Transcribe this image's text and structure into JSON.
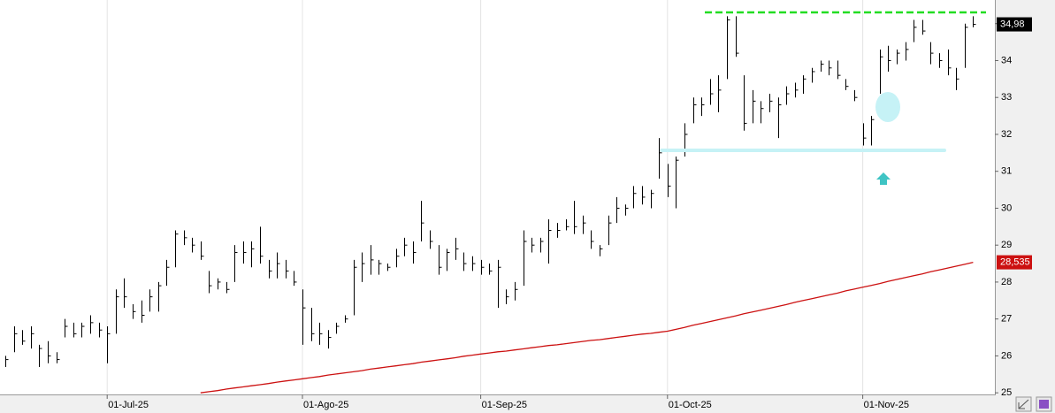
{
  "chart_data": {
    "type": "hlc",
    "categories": [
      null,
      null,
      null,
      null,
      null,
      null,
      null,
      null,
      null,
      null,
      null,
      null,
      "01-Jul-25",
      null,
      null,
      null,
      null,
      null,
      null,
      null,
      null,
      null,
      null,
      null,
      null,
      null,
      null,
      null,
      null,
      null,
      null,
      null,
      null,
      null,
      null,
      "01-Ago-25",
      null,
      null,
      null,
      null,
      null,
      null,
      null,
      null,
      null,
      null,
      null,
      null,
      null,
      null,
      null,
      null,
      null,
      null,
      null,
      null,
      "01-Sep-25",
      null,
      null,
      null,
      null,
      null,
      null,
      null,
      null,
      null,
      null,
      null,
      null,
      null,
      null,
      null,
      null,
      null,
      null,
      null,
      null,
      null,
      "01-Oct-25",
      null,
      null,
      null,
      null,
      null,
      null,
      null,
      null,
      null,
      null,
      null,
      null,
      null,
      null,
      null,
      null,
      null,
      null,
      null,
      null,
      null,
      null,
      "01-Nov-25",
      null,
      null,
      null,
      null,
      null,
      null,
      null,
      null,
      null,
      null,
      null,
      null,
      null
    ],
    "high": [
      26.0,
      26.8,
      26.7,
      26.8,
      26.3,
      26.4,
      26.1,
      27.0,
      26.9,
      26.9,
      27.1,
      26.9,
      26.8,
      27.8,
      28.1,
      27.4,
      27.5,
      27.8,
      28.0,
      28.6,
      29.4,
      29.4,
      29.2,
      29.1,
      28.3,
      28.1,
      28.0,
      29.0,
      29.1,
      29.1,
      29.5,
      28.6,
      28.8,
      28.6,
      28.3,
      27.8,
      27.3,
      26.9,
      26.7,
      26.9,
      27.1,
      28.6,
      28.8,
      29.0,
      28.6,
      28.5,
      28.9,
      29.2,
      29.1,
      30.2,
      29.4,
      29.0,
      28.9,
      29.2,
      28.8,
      28.7,
      28.6,
      28.5,
      28.6,
      27.8,
      28.0,
      29.4,
      29.2,
      29.2,
      29.7,
      29.6,
      29.7,
      30.2,
      29.8,
      29.4,
      29.0,
      29.8,
      30.3,
      30.1,
      30.6,
      30.6,
      30.5,
      31.9,
      31.2,
      31.4,
      32.3,
      33.0,
      33.0,
      33.5,
      33.6,
      35.2,
      35.2,
      33.6,
      33.2,
      32.9,
      33.1,
      33.0,
      33.3,
      33.4,
      33.6,
      33.8,
      34.0,
      34.0,
      34.0,
      33.5,
      33.2,
      32.3,
      32.5,
      34.3,
      34.4,
      34.3,
      34.5,
      35.1,
      35.1,
      34.5,
      34.2,
      34.3,
      33.8,
      35.0,
      35.2
    ],
    "low": [
      25.7,
      26.1,
      26.3,
      26.2,
      25.7,
      25.8,
      25.8,
      26.5,
      26.5,
      26.5,
      26.6,
      26.5,
      25.8,
      26.6,
      27.3,
      27.0,
      26.9,
      27.2,
      27.2,
      27.9,
      28.4,
      29.0,
      28.8,
      28.6,
      27.7,
      27.8,
      27.7,
      28.0,
      28.5,
      28.4,
      28.5,
      28.1,
      28.1,
      28.1,
      27.9,
      26.3,
      26.4,
      26.3,
      26.2,
      26.6,
      26.9,
      27.1,
      28.0,
      28.2,
      28.2,
      28.3,
      28.4,
      28.7,
      28.5,
      29.1,
      28.9,
      28.2,
      28.3,
      28.6,
      28.3,
      28.3,
      28.2,
      28.2,
      27.3,
      27.4,
      27.5,
      27.9,
      28.8,
      28.8,
      28.5,
      29.2,
      29.4,
      29.3,
      29.3,
      28.9,
      28.7,
      29.0,
      29.6,
      29.8,
      30.0,
      30.1,
      30.0,
      30.8,
      30.3,
      30.0,
      31.4,
      32.3,
      32.5,
      32.8,
      32.6,
      33.5,
      34.1,
      32.1,
      32.3,
      32.3,
      32.6,
      31.9,
      32.8,
      33.0,
      33.1,
      33.4,
      33.7,
      33.6,
      33.5,
      33.2,
      32.9,
      31.7,
      31.7,
      33.1,
      33.7,
      33.9,
      34.0,
      34.5,
      34.7,
      33.9,
      33.8,
      33.6,
      33.2,
      33.8,
      34.9
    ],
    "close": [
      25.9,
      26.6,
      26.4,
      26.6,
      26.2,
      26.0,
      25.9,
      26.8,
      26.6,
      26.8,
      26.9,
      26.7,
      26.6,
      27.6,
      27.6,
      27.2,
      27.1,
      27.6,
      27.9,
      28.4,
      29.3,
      29.2,
      29.0,
      28.7,
      27.9,
      28.0,
      27.8,
      28.8,
      28.8,
      28.9,
      28.7,
      28.3,
      28.5,
      28.3,
      28.0,
      27.3,
      26.6,
      26.6,
      26.5,
      26.8,
      27.0,
      28.4,
      28.5,
      28.6,
      28.5,
      28.4,
      28.7,
      29.0,
      28.8,
      29.6,
      29.1,
      28.4,
      28.8,
      28.9,
      28.5,
      28.5,
      28.4,
      28.3,
      28.4,
      27.6,
      27.8,
      29.1,
      29.0,
      29.1,
      29.4,
      29.4,
      29.5,
      29.5,
      29.6,
      29.1,
      28.9,
      29.6,
      30.0,
      30.0,
      30.4,
      30.3,
      30.4,
      31.5,
      30.6,
      31.3,
      32.0,
      32.8,
      32.8,
      33.1,
      33.2,
      35.1,
      34.2,
      32.3,
      32.9,
      32.7,
      32.9,
      32.8,
      33.1,
      33.2,
      33.5,
      33.7,
      33.9,
      33.8,
      33.6,
      33.3,
      33.0,
      31.9,
      32.4,
      34.1,
      34.0,
      34.2,
      34.3,
      34.9,
      34.8,
      34.2,
      34.0,
      33.8,
      33.5,
      34.9,
      34.98
    ],
    "close_last_label": "34,98",
    "bar_color": "#000000",
    "moving_average": {
      "color": "#cc1111",
      "last_label": "28,535",
      "values": [
        null,
        null,
        null,
        null,
        null,
        null,
        null,
        null,
        null,
        null,
        null,
        null,
        null,
        null,
        null,
        null,
        null,
        null,
        null,
        null,
        null,
        null,
        null,
        25.0,
        25.03,
        25.06,
        25.1,
        25.13,
        25.16,
        25.19,
        25.22,
        25.25,
        25.29,
        25.32,
        25.35,
        25.38,
        25.41,
        25.44,
        25.48,
        25.51,
        25.54,
        25.57,
        25.6,
        25.64,
        25.67,
        25.7,
        25.73,
        25.76,
        25.79,
        25.83,
        25.86,
        25.89,
        25.92,
        25.95,
        25.99,
        26.02,
        26.05,
        26.08,
        26.11,
        26.13,
        26.16,
        26.19,
        26.22,
        26.25,
        26.28,
        26.3,
        26.33,
        26.36,
        26.39,
        26.42,
        26.44,
        26.47,
        26.5,
        26.53,
        26.56,
        26.59,
        26.61,
        26.64,
        26.67,
        26.72,
        26.77,
        26.83,
        26.88,
        26.93,
        26.98,
        27.03,
        27.08,
        27.14,
        27.19,
        27.24,
        27.29,
        27.34,
        27.39,
        27.45,
        27.5,
        27.55,
        27.6,
        27.65,
        27.7,
        27.76,
        27.81,
        27.86,
        27.91,
        27.96,
        28.02,
        28.07,
        28.12,
        28.17,
        28.22,
        28.28,
        28.33,
        28.38,
        28.43,
        28.48,
        28.535
      ]
    },
    "ylim": [
      24.98,
      35.64
    ],
    "yticks": [
      25,
      26,
      27,
      28,
      29,
      30,
      31,
      32,
      33,
      34,
      35
    ],
    "grid": true
  }
}
